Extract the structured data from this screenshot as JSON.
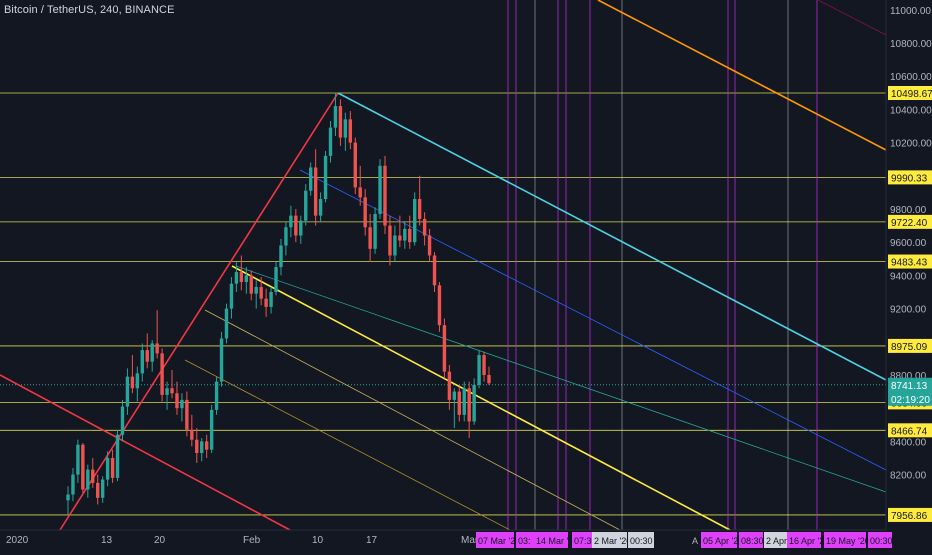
{
  "header": {
    "symbol": "Bitcoin / TetherUS",
    "interval": "240",
    "exchange": "BINANCE",
    "title": "Bitcoin / TetherUS, 240, BINANCE"
  },
  "colors": {
    "background": "#131722",
    "candle_up": "#26a69a",
    "candle_down": "#ef5350",
    "horizontal_level": "#d8d853",
    "vertical_magenta": "#b72ad6",
    "vertical_white": "#e0e3eb",
    "channel_red": "#f23645",
    "channel_cyan": "#4dd0e1",
    "channel_yellow": "#ffeb3b",
    "channel_orange": "#ff9800",
    "price_label_yellow_bg": "#ffeb3b",
    "price_label_teal_bg": "#26a69a",
    "time_label_magenta_bg": "#e040fb",
    "time_label_grey_bg": "#d1d4dc"
  },
  "chart_data": {
    "type": "candlestick",
    "y_axis": {
      "range": [
        7950,
        11100
      ],
      "ticks": [
        11000,
        10800,
        10600,
        10400,
        10200,
        9800,
        9600,
        9400,
        9200,
        8800,
        8400,
        8200
      ],
      "tick_labels": [
        "11000.00",
        "10800.00",
        "10600.00",
        "10400.00",
        "10200.00",
        "9800.00",
        "9600.00",
        "9400.00",
        "9200.00",
        "8800.00",
        "8400.00",
        "8200.00"
      ]
    },
    "x_axis": {
      "tick_labels": [
        "2020",
        "13",
        "20",
        "Feb",
        "10",
        "17",
        "Mar"
      ]
    },
    "horizontal_levels": [
      {
        "value": 10498.67,
        "label": "10498.67"
      },
      {
        "value": 9990.33,
        "label": "9990.33"
      },
      {
        "value": 9722.4,
        "label": "9722.40"
      },
      {
        "value": 9483.43,
        "label": "9483.43"
      },
      {
        "value": 8975.09,
        "label": "8975.09"
      },
      {
        "value": 8634.99,
        "label": "8634.99"
      },
      {
        "value": 8466.74,
        "label": "8466.74"
      },
      {
        "value": 7956.86,
        "label": "7956.86"
      }
    ],
    "current_price": {
      "value": 8741.13,
      "label": "8741.13",
      "countdown": "02:19:20"
    },
    "time_labels": [
      {
        "text": "07 Mar '20",
        "style": "magenta"
      },
      {
        "text": "03:",
        "style": "magenta"
      },
      {
        "text": "14 Mar '20",
        "style": "magenta"
      },
      {
        "text": "07:30",
        "style": "magenta"
      },
      {
        "text": "2 Mar '20",
        "style": "grey"
      },
      {
        "text": "00:30",
        "style": "grey"
      },
      {
        "text": "A",
        "style": "none"
      },
      {
        "text": "05 Apr '20",
        "style": "magenta"
      },
      {
        "text": "08:30",
        "style": "magenta"
      },
      {
        "text": "2 Apr '",
        "style": "grey"
      },
      {
        "text": "16 Apr '20",
        "style": "magenta"
      },
      {
        "text": "19 May '20",
        "style": "magenta"
      },
      {
        "text": "00:30",
        "style": "magenta"
      }
    ],
    "series": [
      {
        "name": "",
        "ohlc": [
          [
            8045,
            8130,
            7960,
            8080
          ],
          [
            8080,
            8240,
            8040,
            8200
          ],
          [
            8200,
            8410,
            8150,
            8380
          ],
          [
            8380,
            8390,
            8090,
            8110
          ],
          [
            8110,
            8260,
            8060,
            8230
          ],
          [
            8230,
            8300,
            8120,
            8150
          ],
          [
            8150,
            8200,
            8020,
            8060
          ],
          [
            8060,
            8190,
            8030,
            8170
          ],
          [
            8170,
            8340,
            8130,
            8300
          ],
          [
            8300,
            8350,
            8150,
            8180
          ],
          [
            8180,
            8470,
            8160,
            8440
          ],
          [
            8440,
            8650,
            8400,
            8610
          ],
          [
            8610,
            8840,
            8560,
            8790
          ],
          [
            8790,
            8920,
            8690,
            8720
          ],
          [
            8720,
            8850,
            8640,
            8810
          ],
          [
            8810,
            8990,
            8760,
            8950
          ],
          [
            8950,
            9050,
            8840,
            8880
          ],
          [
            8880,
            9010,
            8820,
            8990
          ],
          [
            8990,
            9190,
            8900,
            8930
          ],
          [
            8930,
            8960,
            8640,
            8680
          ],
          [
            8680,
            8760,
            8590,
            8720
          ],
          [
            8720,
            8830,
            8660,
            8690
          ],
          [
            8690,
            8760,
            8560,
            8600
          ],
          [
            8600,
            8690,
            8520,
            8650
          ],
          [
            8650,
            8700,
            8430,
            8470
          ],
          [
            8470,
            8560,
            8370,
            8410
          ],
          [
            8410,
            8480,
            8270,
            8330
          ],
          [
            8330,
            8420,
            8280,
            8400
          ],
          [
            8400,
            8440,
            8300,
            8350
          ],
          [
            8350,
            8620,
            8330,
            8590
          ],
          [
            8590,
            8790,
            8560,
            8760
          ],
          [
            8760,
            9060,
            8730,
            9020
          ],
          [
            9020,
            9230,
            8990,
            9200
          ],
          [
            9200,
            9390,
            9140,
            9350
          ],
          [
            9350,
            9480,
            9300,
            9420
          ],
          [
            9420,
            9520,
            9310,
            9360
          ],
          [
            9360,
            9450,
            9290,
            9400
          ],
          [
            9400,
            9430,
            9250,
            9290
          ],
          [
            9290,
            9370,
            9200,
            9330
          ],
          [
            9330,
            9390,
            9220,
            9260
          ],
          [
            9260,
            9320,
            9150,
            9210
          ],
          [
            9210,
            9330,
            9170,
            9300
          ],
          [
            9300,
            9480,
            9280,
            9450
          ],
          [
            9450,
            9620,
            9400,
            9580
          ],
          [
            9580,
            9720,
            9520,
            9690
          ],
          [
            9690,
            9820,
            9630,
            9760
          ],
          [
            9760,
            9800,
            9600,
            9640
          ],
          [
            9640,
            9760,
            9590,
            9730
          ],
          [
            9730,
            9950,
            9700,
            9910
          ],
          [
            9910,
            10080,
            9880,
            10050
          ],
          [
            10050,
            10160,
            9700,
            9760
          ],
          [
            9760,
            9900,
            9720,
            9860
          ],
          [
            9860,
            10150,
            9840,
            10120
          ],
          [
            10120,
            10330,
            10080,
            10290
          ],
          [
            10290,
            10500,
            10240,
            10420
          ],
          [
            10420,
            10460,
            10180,
            10230
          ],
          [
            10230,
            10380,
            10150,
            10340
          ],
          [
            10340,
            10390,
            10160,
            10200
          ],
          [
            10200,
            10230,
            9890,
            9930
          ],
          [
            9930,
            10060,
            9820,
            9870
          ],
          [
            9870,
            9920,
            9640,
            9690
          ],
          [
            9690,
            9770,
            9480,
            9560
          ],
          [
            9560,
            9810,
            9530,
            9770
          ],
          [
            9770,
            10100,
            9740,
            10060
          ],
          [
            10060,
            10120,
            9650,
            9700
          ],
          [
            9700,
            9760,
            9460,
            9520
          ],
          [
            9520,
            9700,
            9480,
            9640
          ],
          [
            9640,
            9760,
            9570,
            9610
          ],
          [
            9610,
            9720,
            9560,
            9680
          ],
          [
            9680,
            9760,
            9560,
            9600
          ],
          [
            9600,
            9900,
            9580,
            9860
          ],
          [
            9860,
            10000,
            9700,
            9740
          ],
          [
            9740,
            9780,
            9580,
            9640
          ],
          [
            9640,
            9680,
            9480,
            9520
          ],
          [
            9520,
            9540,
            9300,
            9340
          ],
          [
            9340,
            9360,
            9060,
            9100
          ],
          [
            9100,
            9140,
            8780,
            8820
          ],
          [
            8820,
            8860,
            8590,
            8650
          ],
          [
            8650,
            8720,
            8480,
            8700
          ],
          [
            8700,
            8730,
            8520,
            8560
          ],
          [
            8560,
            8760,
            8520,
            8720
          ],
          [
            8720,
            8760,
            8420,
            8520
          ],
          [
            8520,
            8780,
            8500,
            8740
          ],
          [
            8740,
            8950,
            8720,
            8920
          ],
          [
            8920,
            8940,
            8760,
            8800
          ],
          [
            8800,
            8850,
            8740,
            8750
          ]
        ]
      }
    ]
  }
}
